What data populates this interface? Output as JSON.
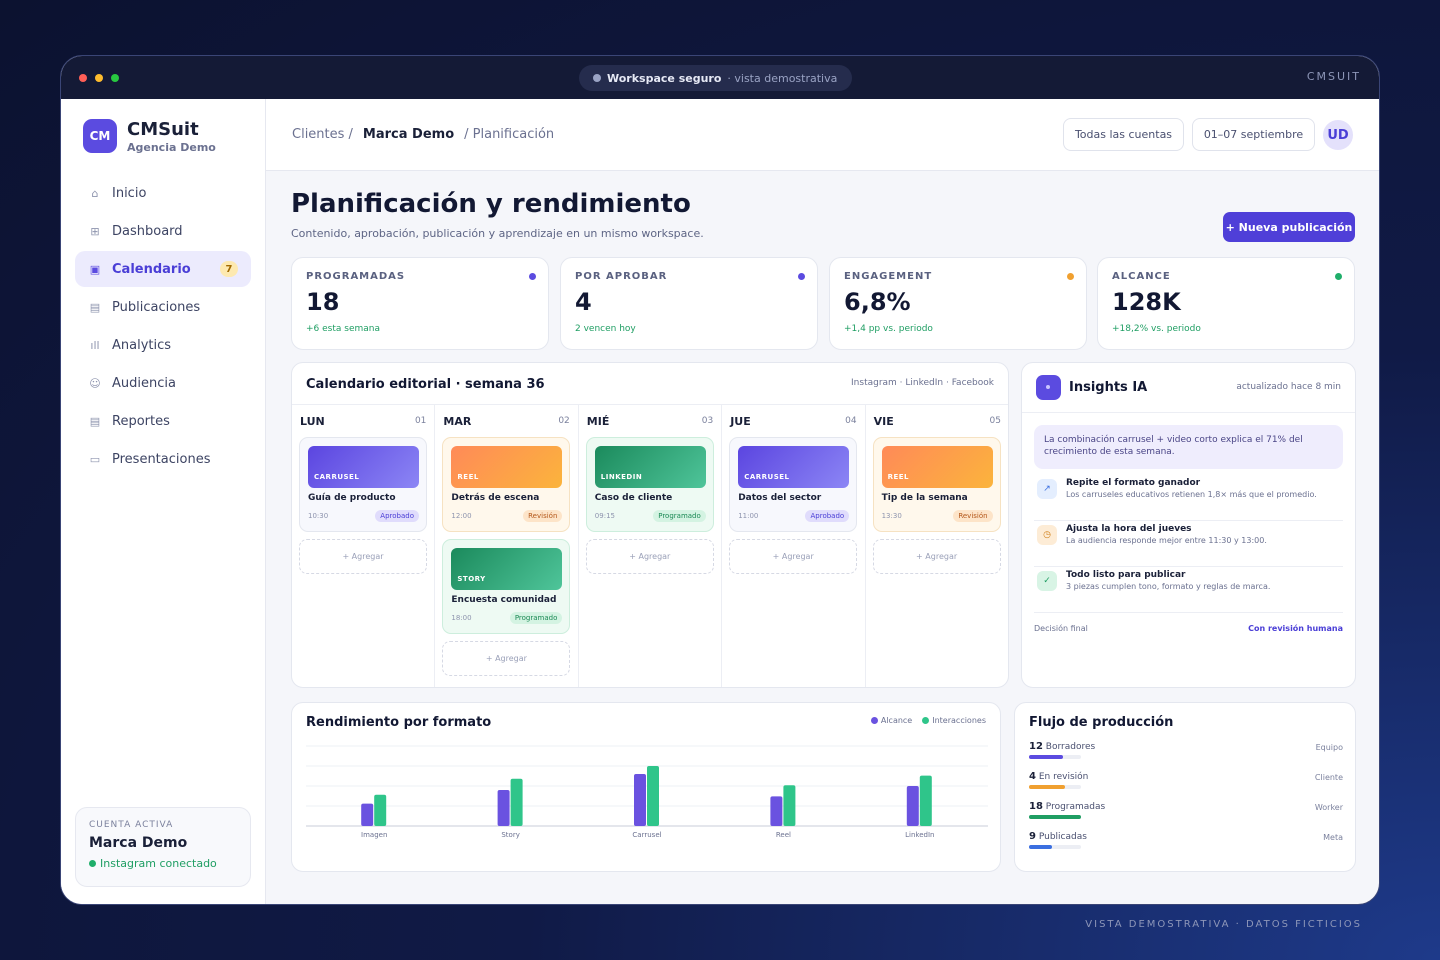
{
  "window": {
    "pill_title": "Workspace seguro",
    "pill_sub": "· vista demostrativa",
    "brand": "CMSUIT"
  },
  "sidebar": {
    "logo": "CM",
    "brand": "CMSuit",
    "agency": "Agencia Demo",
    "items": [
      {
        "label": "Inicio",
        "icon": "home-icon",
        "glyph": "⌂"
      },
      {
        "label": "Dashboard",
        "icon": "grid-icon",
        "glyph": "⊞"
      },
      {
        "label": "Calendario",
        "icon": "calendar-icon",
        "glyph": "▣",
        "badge": "7"
      },
      {
        "label": "Publicaciones",
        "icon": "document-icon",
        "glyph": "▤"
      },
      {
        "label": "Analytics",
        "icon": "bar-chart-icon",
        "glyph": "ıll"
      },
      {
        "label": "Audiencia",
        "icon": "users-icon",
        "glyph": "☺"
      },
      {
        "label": "Reportes",
        "icon": "report-icon",
        "glyph": "▤"
      },
      {
        "label": "Presentaciones",
        "icon": "monitor-icon",
        "glyph": "▭"
      }
    ],
    "account": {
      "label": "CUENTA ACTIVA",
      "name": "Marca Demo",
      "status": "Instagram conectado"
    }
  },
  "topbar": {
    "crumb1": "Clientes /",
    "crumb2": "Marca Demo",
    "crumb3": "/ Planificación",
    "accounts": "Todas las cuentas",
    "dates": "01–07 septiembre",
    "avatar": "UD"
  },
  "page": {
    "title": "Planificación y rendimiento",
    "subtitle": "Contenido, aprobación, publicación y aprendizaje en un mismo workspace.",
    "new_button": "+ Nueva publicación"
  },
  "kpis": [
    {
      "label": "PROGRAMADAS",
      "value": "18",
      "sub": "+6 esta semana",
      "color": "#5b4be0"
    },
    {
      "label": "POR APROBAR",
      "value": "4",
      "sub": "2 vencen hoy",
      "color": "#5b4be0"
    },
    {
      "label": "ENGAGEMENT",
      "value": "6,8%",
      "sub": "+1,4 pp vs. periodo",
      "color": "#f0a030"
    },
    {
      "label": "ALCANCE",
      "value": "128K",
      "sub": "+18,2% vs. periodo",
      "color": "#1fae6a"
    }
  ],
  "calendar": {
    "title": "Calendario editorial · semana 36",
    "networks": "Instagram · LinkedIn · Facebook",
    "add_label": "+ Agregar",
    "days": [
      {
        "name": "LUN",
        "num": "01",
        "posts": [
          {
            "tag": "CARRUSEL",
            "title": "Guía de producto",
            "time": "10:30",
            "status": "Aprobado",
            "kind": "purple"
          }
        ]
      },
      {
        "name": "MAR",
        "num": "02",
        "posts": [
          {
            "tag": "REEL",
            "title": "Detrás de escena",
            "time": "12:00",
            "status": "Revisión",
            "kind": "orange"
          },
          {
            "tag": "STORY",
            "title": "Encuesta comunidad",
            "time": "18:00",
            "status": "Programado",
            "kind": "green"
          }
        ]
      },
      {
        "name": "MIÉ",
        "num": "03",
        "posts": [
          {
            "tag": "LINKEDIN",
            "title": "Caso de cliente",
            "time": "09:15",
            "status": "Programado",
            "kind": "green"
          }
        ]
      },
      {
        "name": "JUE",
        "num": "04",
        "posts": [
          {
            "tag": "CARRUSEL",
            "title": "Datos del sector",
            "time": "11:00",
            "status": "Aprobado",
            "kind": "purple"
          }
        ]
      },
      {
        "name": "VIE",
        "num": "05",
        "posts": [
          {
            "tag": "REEL",
            "title": "Tip de la semana",
            "time": "13:30",
            "status": "Revisión",
            "kind": "orange"
          }
        ]
      }
    ]
  },
  "insights": {
    "title": "Insights IA",
    "updated": "actualizado hace 8 min",
    "highlight": "La combinación carrusel + video corto explica el 71% del crecimiento de esta semana.",
    "items": [
      {
        "title": "Repite el formato ganador",
        "desc": "Los carruseles educativos retienen 1,8× más que el promedio.",
        "icon": "arrow-up-right-icon",
        "glyph": "↗"
      },
      {
        "title": "Ajusta la hora del jueves",
        "desc": "La audiencia responde mejor entre 11:30 y 13:00.",
        "icon": "clock-icon",
        "glyph": "◷"
      },
      {
        "title": "Todo listo para publicar",
        "desc": "3 piezas cumplen tono, formato y reglas de marca.",
        "icon": "check-icon",
        "glyph": "✓"
      }
    ],
    "decision_label": "Decisión final",
    "decision_value": "Con revisión humana"
  },
  "chart_data": {
    "type": "bar",
    "title": "Rendimiento por formato",
    "categories": [
      "Imagen",
      "Story",
      "Carrusel",
      "Reel",
      "LinkedIn"
    ],
    "series": [
      {
        "name": "Alcance",
        "color": "#6a52e0",
        "values": [
          28,
          45,
          65,
          37,
          50
        ]
      },
      {
        "name": "Interacciones",
        "color": "#2fc58a",
        "values": [
          39,
          59,
          75,
          51,
          63
        ]
      }
    ],
    "ylim": [
      0,
      100
    ],
    "grid": true,
    "legend": "top-right"
  },
  "flow": {
    "title": "Flujo de producción",
    "items": [
      {
        "count": "12",
        "label": "Borradores",
        "owner": "Equipo",
        "progress": 0.65,
        "color": "#5b4be0"
      },
      {
        "count": "4",
        "label": "En revisión",
        "owner": "Cliente",
        "progress": 0.7,
        "color": "#f0a030"
      },
      {
        "count": "18",
        "label": "Programadas",
        "owner": "Worker",
        "progress": 1.0,
        "color": "#1f9e63"
      },
      {
        "count": "9",
        "label": "Publicadas",
        "owner": "Meta",
        "progress": 0.45,
        "color": "#3b6fe0"
      }
    ]
  },
  "footer": "VISTA DEMOSTRATIVA · DATOS FICTICIOS"
}
